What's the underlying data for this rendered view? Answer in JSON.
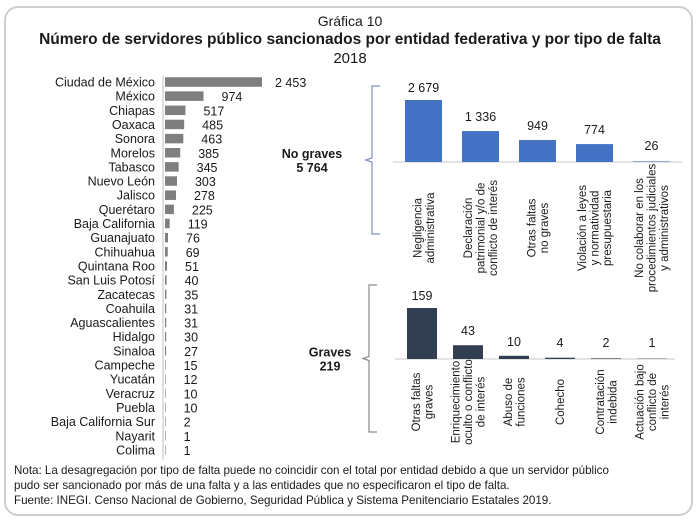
{
  "header": {
    "figure_label": "Gráfica 10",
    "title": "Número de servidores público sancionados por entidad federativa y por tipo de falta",
    "year": "2018"
  },
  "chart_data": [
    {
      "type": "bar",
      "orientation": "horizontal",
      "title": "Servidores públicos sancionados por entidad federativa",
      "categories": [
        "Ciudad de México",
        "México",
        "Chiapas",
        "Oaxaca",
        "Sonora",
        "Morelos",
        "Tabasco",
        "Nuevo León",
        "Jalisco",
        "Querétaro",
        "Baja California",
        "Guanajuato",
        "Chihuahua",
        "Quintana Roo",
        "San Luis Potosí",
        "Zacatecas",
        "Coahuila",
        "Aguascalientes",
        "Hidalgo",
        "Sinaloa",
        "Campeche",
        "Yucatán",
        "Veracruz",
        "Puebla",
        "Baja California Sur",
        "Nayarit",
        "Colima"
      ],
      "values": [
        2453,
        974,
        517,
        485,
        463,
        385,
        345,
        303,
        278,
        225,
        119,
        76,
        69,
        51,
        40,
        35,
        31,
        31,
        30,
        27,
        15,
        12,
        10,
        10,
        2,
        1,
        1
      ],
      "value_labels": [
        "2 453",
        "974",
        "517",
        "485",
        "463",
        "385",
        "345",
        "303",
        "278",
        "225",
        "119",
        "76",
        "69",
        "51",
        "40",
        "35",
        "31",
        "31",
        "30",
        "27",
        "15",
        "12",
        "10",
        "10",
        "2",
        "1",
        "1"
      ],
      "color": "#7f7f7f",
      "xlabel": "",
      "ylabel": "",
      "grid": false
    },
    {
      "type": "bar",
      "orientation": "vertical",
      "group_label": "No graves",
      "group_total": "5 764",
      "categories": [
        [
          "Negligencia",
          "administrativa"
        ],
        [
          "Declaración",
          "patrimonial y/o de",
          "conflicto de interés"
        ],
        [
          "Otras faltas",
          "no graves"
        ],
        [
          "Violación a leyes",
          "y normatividad",
          "presupuestaria"
        ],
        [
          "No colaborar en los",
          "procedimientos judiciales",
          "y administrativos"
        ]
      ],
      "values": [
        2679,
        1336,
        949,
        774,
        26
      ],
      "value_labels": [
        "2 679",
        "1 336",
        "949",
        "774",
        "26"
      ],
      "color": "#4472c4",
      "grid": false
    },
    {
      "type": "bar",
      "orientation": "vertical",
      "group_label": "Graves",
      "group_total": "219",
      "categories": [
        [
          "Otras faltas",
          "graves"
        ],
        [
          "Enriquecimiento",
          "oculto o conflicto",
          "de interés"
        ],
        [
          "Abuso de",
          "funciones"
        ],
        [
          "Cohecho"
        ],
        [
          "Contratación",
          "indebida"
        ],
        [
          "Actuación bajo",
          "conflicto de",
          "interés"
        ]
      ],
      "values": [
        159,
        43,
        10,
        4,
        2,
        1
      ],
      "value_labels": [
        "159",
        "43",
        "10",
        "4",
        "2",
        "1"
      ],
      "color": "#323f52",
      "grid": false
    }
  ],
  "footer": {
    "note_line1": "Nota: La desagregación por tipo de falta puede no coincidir con el total por entidad debido a que un servidor público",
    "note_line2": "pudo ser sancionado por más de una falta y a las entidades que no especificaron el tipo de falta.",
    "source": "Fuente: INEGI. Censo Nacional de Gobierno, Seguridad Pública y Sistema Penitenciario Estatales 2019."
  }
}
